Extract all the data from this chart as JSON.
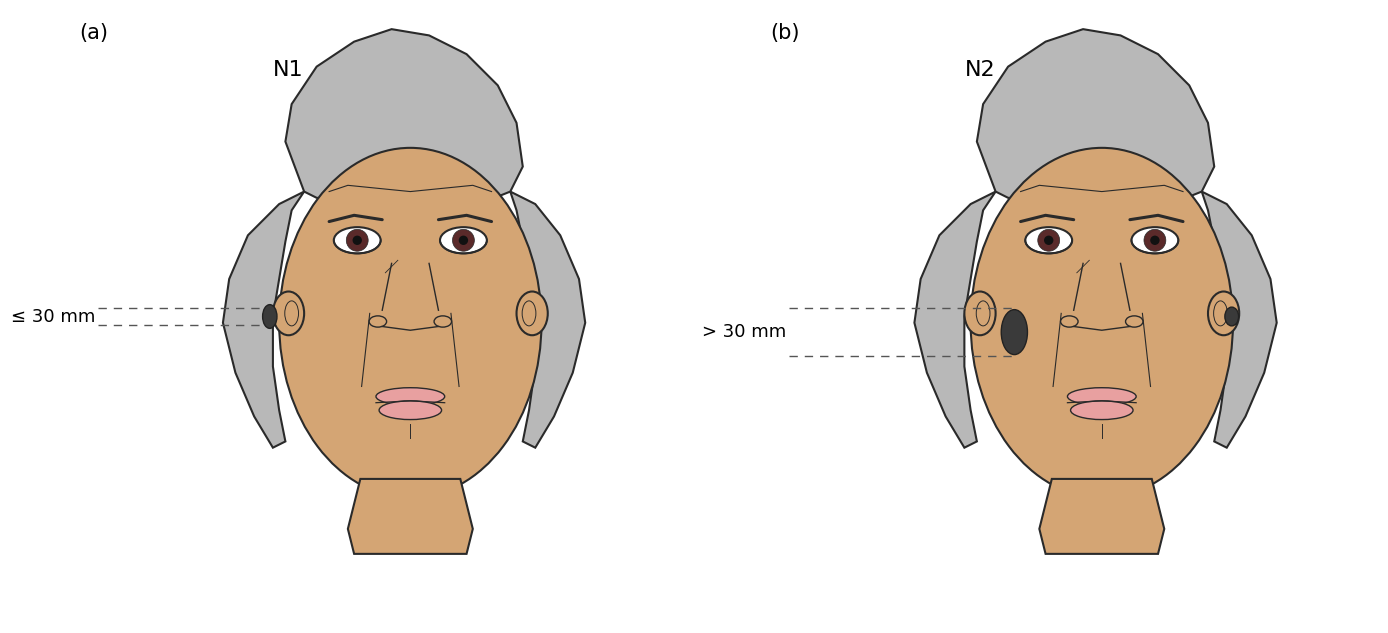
{
  "panel_a_label": "(a)",
  "panel_b_label": "(b)",
  "panel_a_title": "N1",
  "panel_b_title": "N2",
  "panel_a_annotation": "≤ 30 mm",
  "panel_b_annotation": "> 30 mm",
  "bg_color": "#ffffff",
  "skin_color": "#D4A574",
  "hair_color": "#B8B8B8",
  "outline_color": "#2a2a2a",
  "node_color": "#3a3a3a",
  "eye_color": "#5a2a2a",
  "lip_color": "#e8a0a0",
  "dashed_color": "#555555",
  "label_fontsize": 15,
  "title_fontsize": 16,
  "annot_fontsize": 13
}
